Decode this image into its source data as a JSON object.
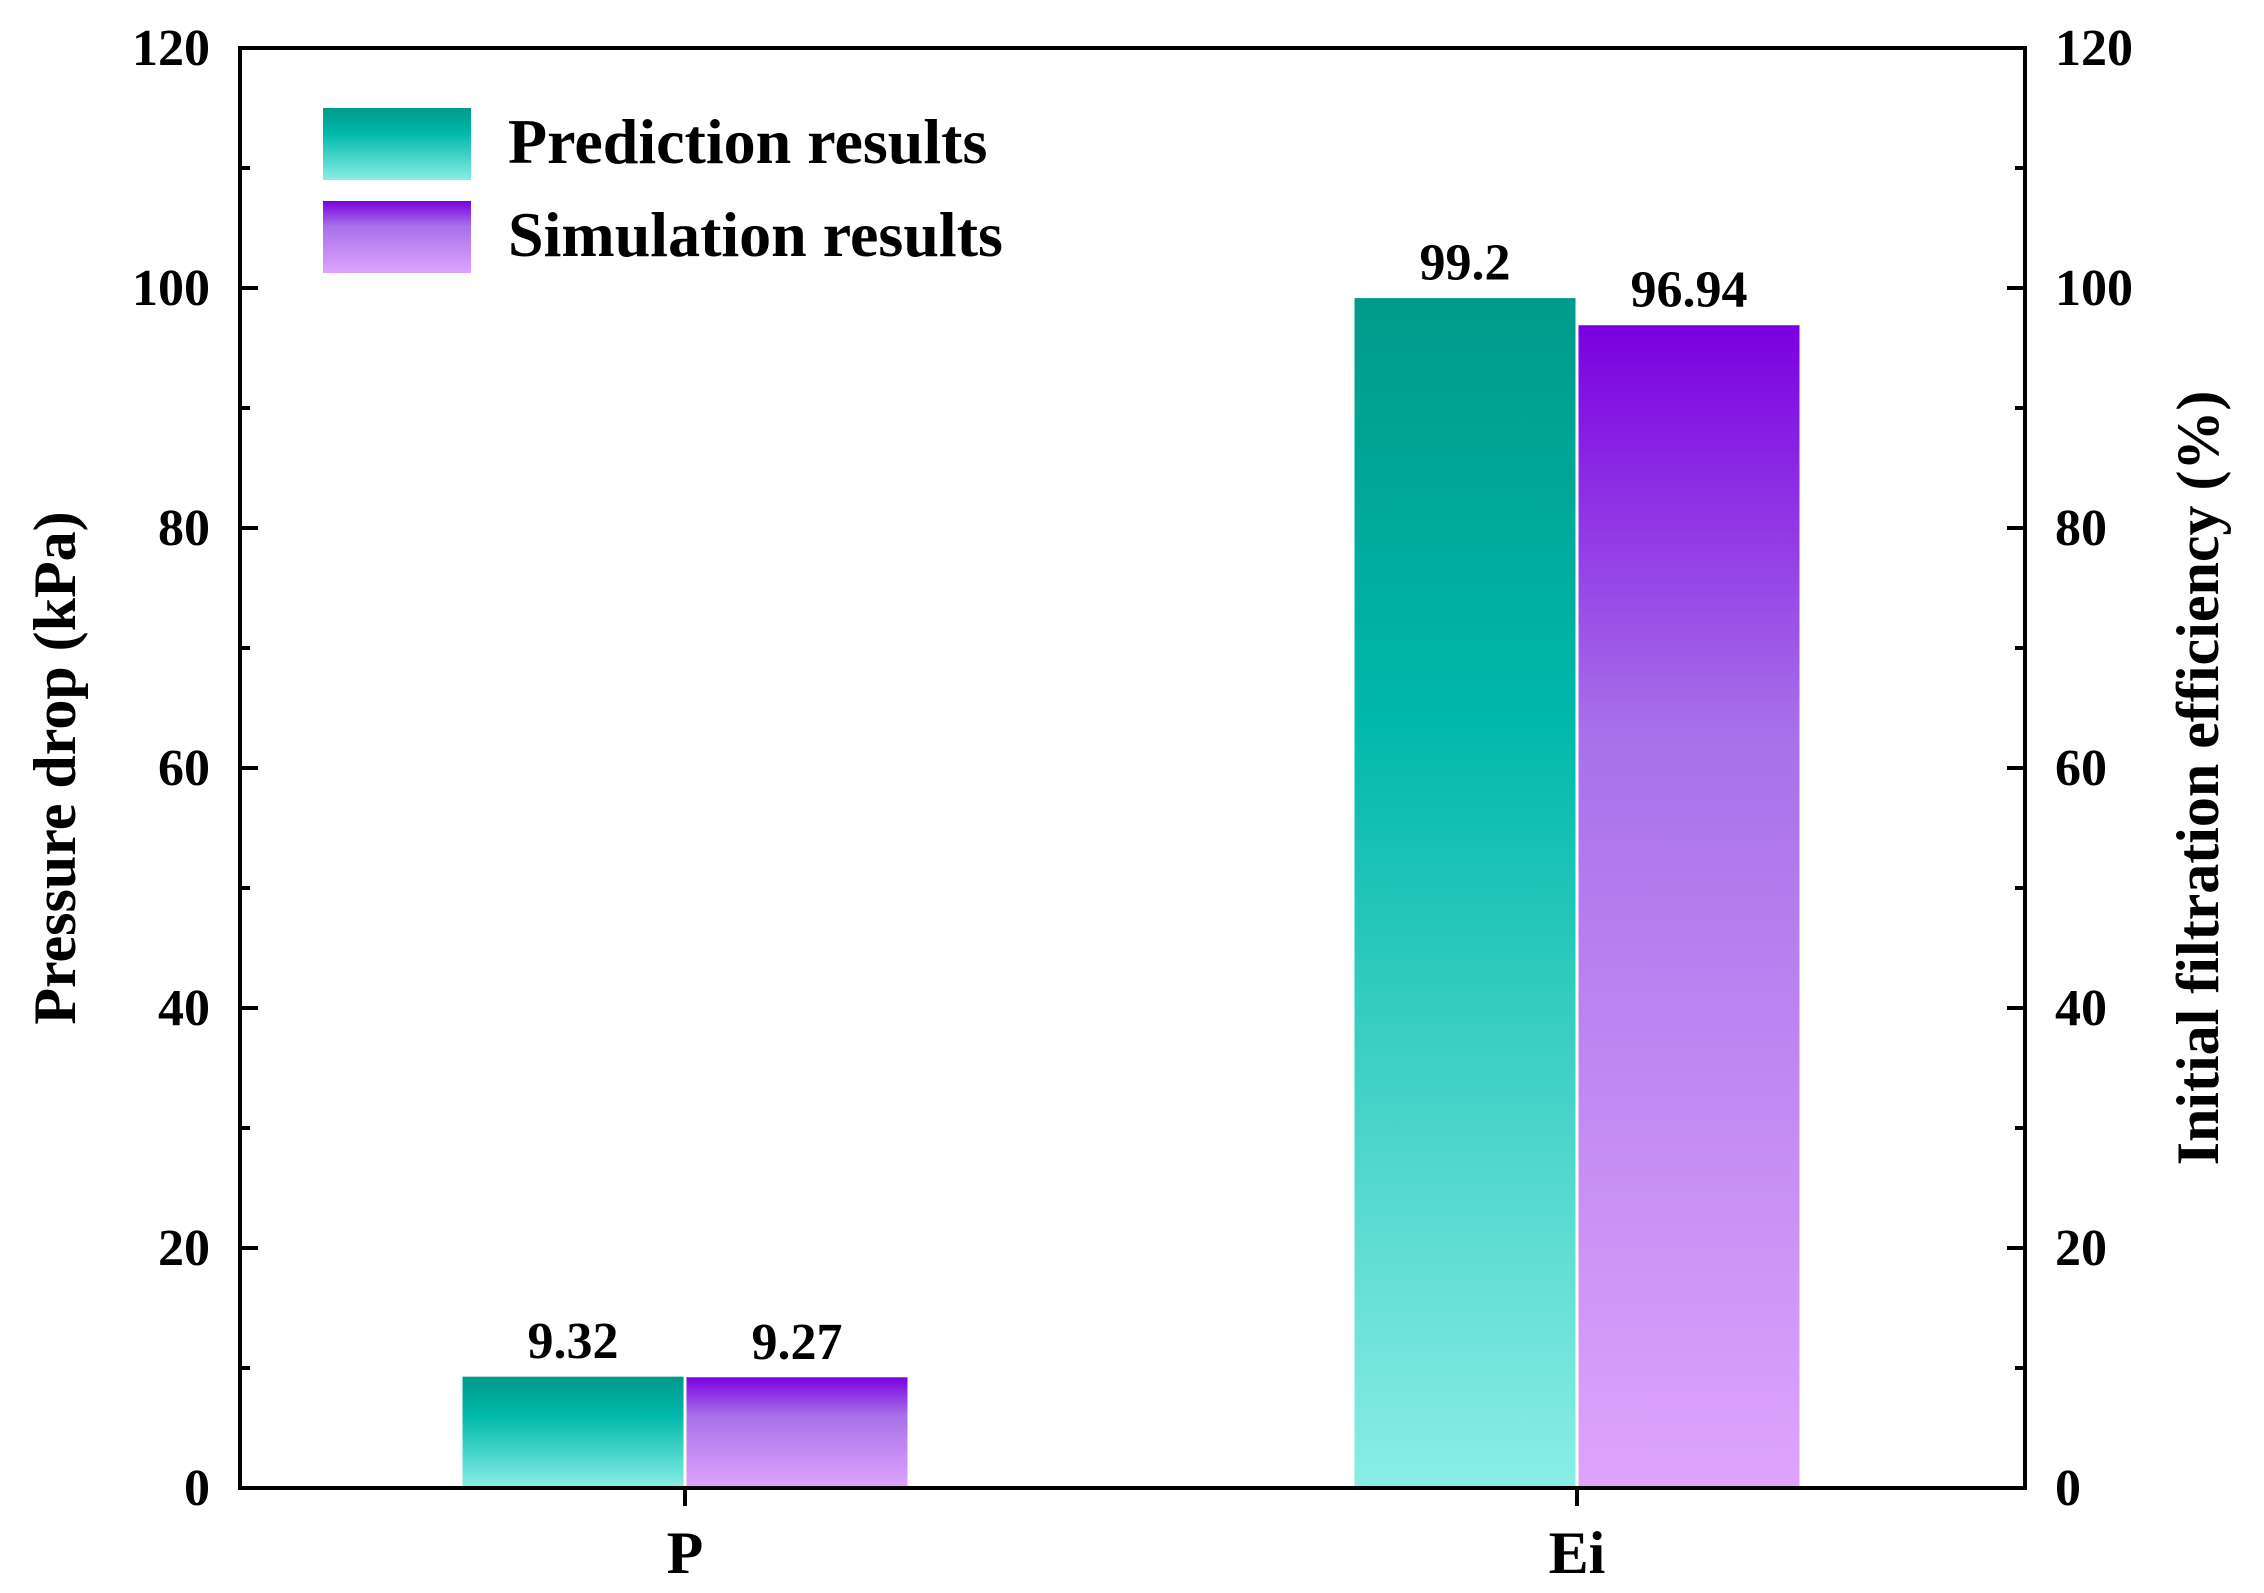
{
  "chart_data": {
    "type": "bar",
    "categories": [
      "P",
      "Ei"
    ],
    "series": [
      {
        "name": "Prediction results",
        "values": [
          9.32,
          99.2
        ],
        "labels": [
          "9.32",
          "99.2"
        ],
        "color_top": "#009a8a",
        "color_mid": "#00b8aa",
        "color_bottom": "#8aeee6"
      },
      {
        "name": "Simulation results",
        "values": [
          9.27,
          96.94
        ],
        "labels": [
          "9.27",
          "96.94"
        ],
        "color_top": "#7a00e0",
        "color_mid": "#a870ea",
        "color_bottom": "#dea4fc"
      }
    ],
    "ylabel": "Pressure drop (kPa)",
    "ylabel_right": "Initial filtration efficiency (%)",
    "ylim": [
      0,
      120
    ],
    "yticks": [
      0,
      20,
      40,
      60,
      80,
      100,
      120
    ],
    "ylim_right": [
      0,
      120
    ],
    "yticks_right": [
      0,
      20,
      40,
      60,
      80,
      100,
      120
    ],
    "grid": false,
    "legend_position": "top-left"
  }
}
